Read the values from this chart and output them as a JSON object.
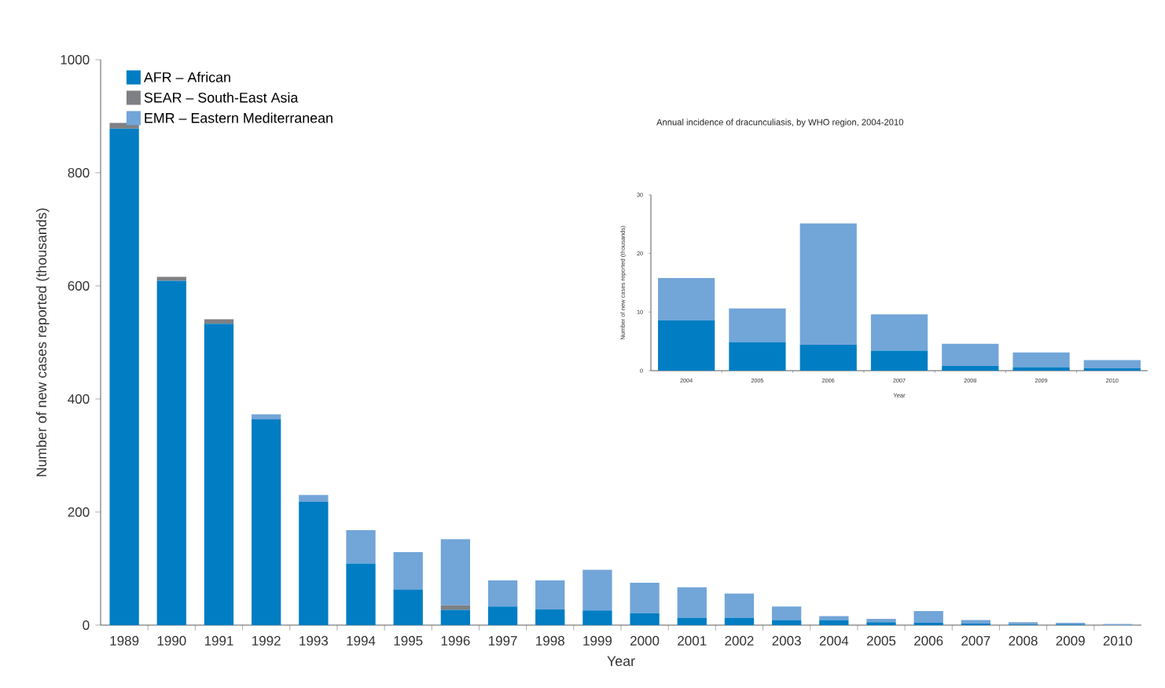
{
  "chart_data": [
    {
      "type": "bar",
      "stacked": true,
      "xlabel": "Year",
      "ylabel": "Number of new cases reported (thousands)",
      "categories": [
        "1989",
        "1990",
        "1991",
        "1992",
        "1993",
        "1994",
        "1995",
        "1996",
        "1997",
        "1998",
        "1999",
        "2000",
        "2001",
        "2002",
        "2003",
        "2004",
        "2005",
        "2006",
        "2007",
        "2008",
        "2009",
        "2010"
      ],
      "series": [
        {
          "name": "AFR – African",
          "color": "#007dc3",
          "values": [
            878,
            609,
            533,
            364,
            218,
            109,
            63,
            27,
            33,
            28,
            26,
            21,
            13,
            13,
            9,
            9,
            5,
            4,
            3,
            1,
            1,
            0
          ]
        },
        {
          "name": "SEAR – South-East Asia",
          "color": "#7f8083",
          "values": [
            10,
            7,
            8,
            0,
            0,
            0,
            0,
            8,
            0,
            0,
            0,
            0,
            0,
            0,
            0,
            0,
            0,
            0,
            0,
            0,
            0,
            0
          ]
        },
        {
          "name": "EMR – Eastern Mediterranean",
          "color": "#72a5d8",
          "values": [
            0,
            0,
            0,
            9,
            12,
            59,
            66,
            117,
            46,
            51,
            72,
            54,
            54,
            43,
            24,
            7,
            6,
            21,
            6,
            4,
            3,
            2
          ]
        }
      ],
      "ylim": [
        0,
        1000
      ],
      "yticks": [
        0,
        200,
        400,
        600,
        800,
        1000
      ],
      "legend": "top left"
    },
    {
      "type": "bar",
      "stacked": true,
      "title": "Annual incidence of dracunculiasis, by WHO region, 2004-2010",
      "xlabel": "Year",
      "ylabel": "Number of new cases reported (thousands)",
      "categories": [
        "2004",
        "2005",
        "2006",
        "2007",
        "2008",
        "2009",
        "2010"
      ],
      "series": [
        {
          "color": "#007dc3",
          "values": [
            8.6,
            4.9,
            4.4,
            3.4,
            0.8,
            0.6,
            0.4
          ]
        },
        {
          "color": "#72a5d8",
          "values": [
            7.2,
            5.7,
            20.7,
            6.2,
            3.8,
            2.5,
            1.4
          ]
        }
      ],
      "ylim": [
        0,
        30
      ],
      "yticks": [
        0,
        10,
        20,
        30
      ]
    }
  ]
}
